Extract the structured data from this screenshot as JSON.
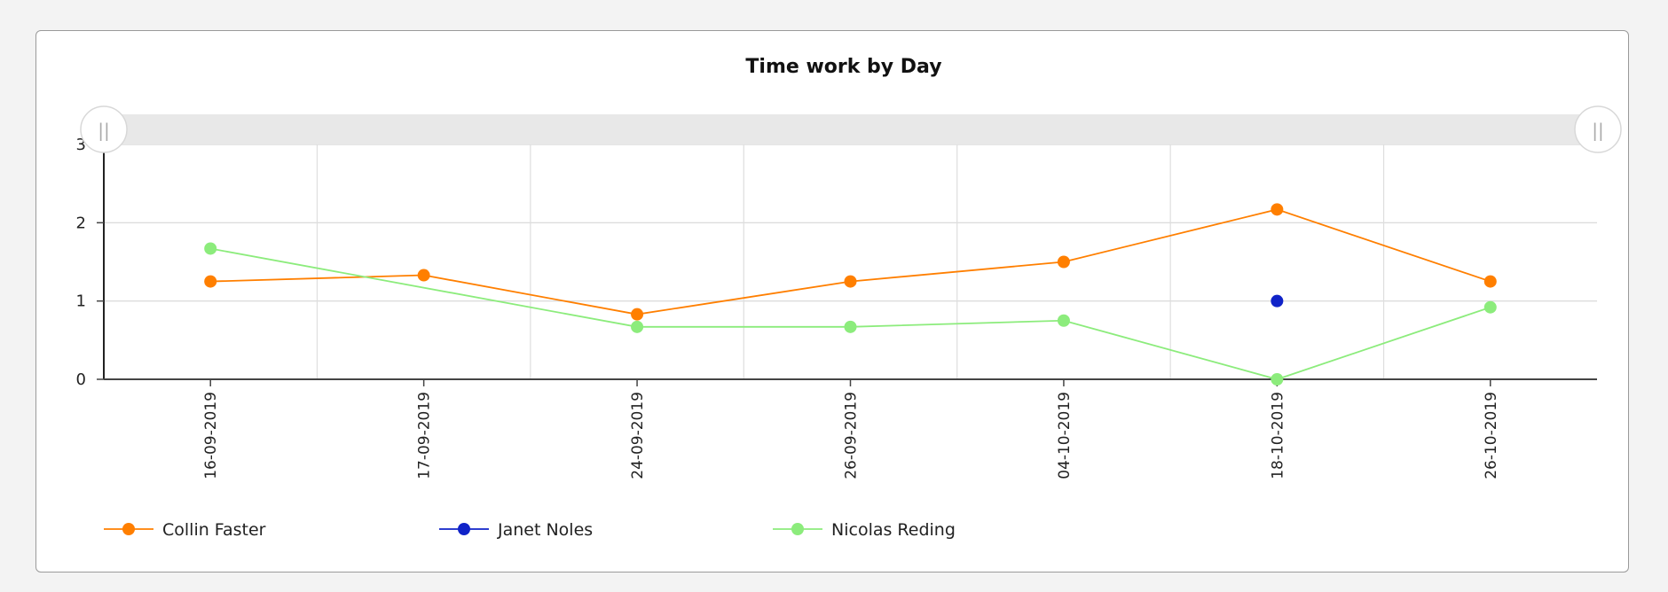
{
  "chart_data": {
    "type": "line",
    "title": "Time work by Day",
    "xlabel": "",
    "ylabel": "",
    "ylim": [
      0,
      3
    ],
    "y_ticks": [
      0,
      1,
      2,
      3
    ],
    "categories": [
      "16-09-2019",
      "17-09-2019",
      "24-09-2019",
      "26-09-2019",
      "04-10-2019",
      "18-10-2019",
      "26-10-2019"
    ],
    "series": [
      {
        "name": "Collin Faster",
        "color": "#ff7f00",
        "values": [
          1.25,
          1.33,
          0.83,
          1.25,
          1.5,
          2.17,
          1.25
        ]
      },
      {
        "name": "Janet Noles",
        "color": "#1023c8",
        "values": [
          null,
          null,
          null,
          null,
          null,
          1.0,
          null
        ]
      },
      {
        "name": "Nicolas Reding",
        "color": "#8cec7c",
        "values": [
          1.67,
          null,
          0.67,
          0.67,
          0.75,
          0.0,
          0.92
        ]
      }
    ],
    "grid": true,
    "legend_position": "bottom-left",
    "range_slider": {
      "handle_glyph": "||"
    }
  }
}
